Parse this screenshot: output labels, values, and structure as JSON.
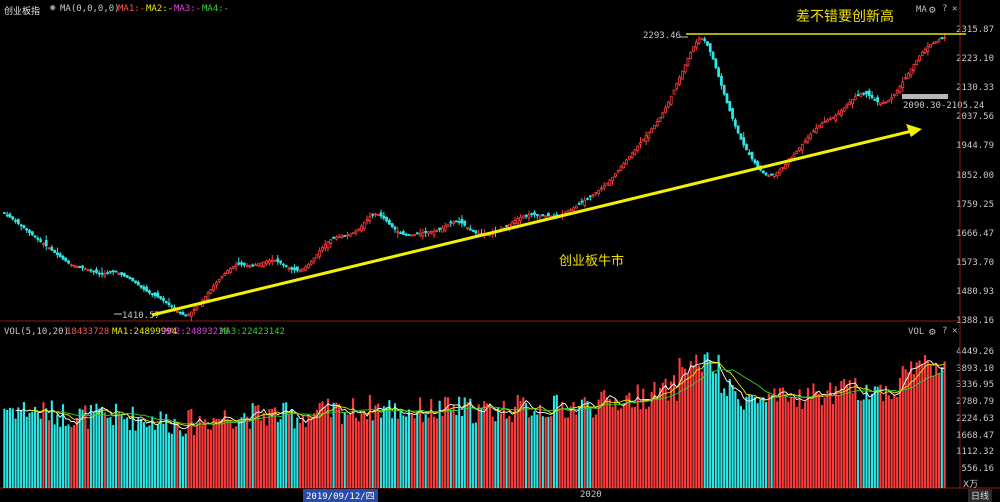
{
  "header": {
    "title": "创业板指",
    "ma_params": "MA(0,0,0,0)",
    "ma1": "MA1:-",
    "ma2": "MA2:-",
    "ma3": "MA3:-",
    "ma4": "MA4:-",
    "ma_tool": "MA"
  },
  "vol_header": {
    "label": "VOL(5,10,20)",
    "vol_value": "18433728",
    "ma1": "MA1:24899994",
    "ma2": "MA2:24893236",
    "ma3": "MA3:22423142",
    "tool": "VOL"
  },
  "annotations": {
    "headline": "差不错要创新高",
    "bull": "创业板牛市",
    "high_label": "2293.46",
    "low_label": "1410.57",
    "range_label": "2090.30-2105.24"
  },
  "xaxis": {
    "date_tag": "2019/09/12/四",
    "year": "2020"
  },
  "bottom": {
    "unit": "X万",
    "period": "日线"
  },
  "colors": {
    "up": "#ff3c3c",
    "down": "#2fe6e6",
    "ma_yellow": "#e8e800",
    "ma_white": "#ffffff",
    "ma_magenta": "#e040e0",
    "ma_green": "#30d030",
    "trend": "#f2f200"
  },
  "chart_data": [
    {
      "type": "candlestick",
      "title": "创业板指",
      "y_ticks": [
        "2315.87",
        "2223.10",
        "2130.33",
        "2037.56",
        "1944.79",
        "1852.00",
        "1759.25",
        "1666.47",
        "1573.70",
        "1480.93",
        "1388.16"
      ],
      "ylim": [
        1388.16,
        2315.87
      ],
      "high": 2293.46,
      "low": 1410.57,
      "x_ticks": [
        "2019/09/12/四",
        "2020"
      ],
      "close_series": [
        1736,
        1729,
        1722,
        1716,
        1709,
        1702,
        1695,
        1688,
        1681,
        1673,
        1666,
        1659,
        1652,
        1645,
        1638,
        1631,
        1624,
        1617,
        1610,
        1603,
        1596,
        1589,
        1582,
        1576,
        1571,
        1568,
        1565,
        1563,
        1561,
        1558,
        1555,
        1552,
        1549,
        1546,
        1543,
        1541,
        1542,
        1545,
        1548,
        1550,
        1547,
        1543,
        1539,
        1535,
        1531,
        1526,
        1520,
        1513,
        1506,
        1499,
        1492,
        1486,
        1481,
        1476,
        1472,
        1468,
        1463,
        1457,
        1450,
        1443,
        1436,
        1429,
        1422,
        1416,
        1412,
        1411,
        1414,
        1420,
        1428,
        1437,
        1447,
        1458,
        1469,
        1481,
        1492,
        1503,
        1514,
        1524,
        1534,
        1543,
        1552,
        1559,
        1565,
        1570,
        1572,
        1572,
        1570,
        1568,
        1567,
        1568,
        1571,
        1574,
        1577,
        1580,
        1583,
        1585,
        1586,
        1585,
        1581,
        1576,
        1570,
        1565,
        1560,
        1556,
        1554,
        1553,
        1554,
        1558,
        1564,
        1572,
        1581,
        1592,
        1603,
        1615,
        1626,
        1636,
        1644,
        1651,
        1656,
        1659,
        1661,
        1663,
        1664,
        1666,
        1669,
        1673,
        1678,
        1685,
        1694,
        1705,
        1715,
        1724,
        1730,
        1733,
        1731,
        1726,
        1719,
        1710,
        1700,
        1692,
        1684,
        1677,
        1671,
        1667,
        1665,
        1664,
        1665,
        1667,
        1669,
        1671,
        1673,
        1675,
        1676,
        1677,
        1678,
        1680,
        1683,
        1688,
        1694,
        1700,
        1705,
        1708,
        1709,
        1707,
        1703,
        1697,
        1690,
        1683,
        1677,
        1672,
        1669,
        1667,
        1667,
        1668,
        1670,
        1672,
        1675,
        1679,
        1684,
        1689,
        1694,
        1700,
        1706,
        1712,
        1718,
        1722,
        1726,
        1728,
        1730,
        1731,
        1731,
        1730,
        1729,
        1728,
        1727,
        1726,
        1726,
        1726,
        1727,
        1729,
        1732,
        1736,
        1741,
        1746,
        1752,
        1758,
        1764,
        1770,
        1776,
        1782,
        1788,
        1794,
        1801,
        1808,
        1815,
        1823,
        1831,
        1840,
        1850,
        1861,
        1872,
        1883,
        1894,
        1905,
        1916,
        1927,
        1938,
        1949,
        1960,
        1971,
        1982,
        1993,
        2004,
        2015,
        2027,
        2040,
        2055,
        2071,
        2089,
        2108,
        2128,
        2148,
        2168,
        2188,
        2208,
        2228,
        2248,
        2266,
        2281,
        2290,
        2293,
        2285,
        2270,
        2250,
        2226,
        2199,
        2171,
        2143,
        2115,
        2088,
        2062,
        2037,
        2013,
        1991,
        1971,
        1953,
        1937,
        1922,
        1908,
        1895,
        1883,
        1872,
        1863,
        1857,
        1855,
        1856,
        1860,
        1866,
        1873,
        1881,
        1890,
        1900,
        1910,
        1921,
        1932,
        1943,
        1954,
        1965,
        1976,
        1987,
        1997,
        2006,
        2014,
        2021,
        2027,
        2032,
        2036,
        2041,
        2047,
        2054,
        2062,
        2071,
        2080,
        2089,
        2098,
        2106,
        2112,
        2116,
        2117,
        2115,
        2110,
        2103,
        2096,
        2090,
        2087,
        2087,
        2090,
        2096,
        2104,
        2114,
        2126,
        2139,
        2153,
        2167,
        2181,
        2195,
        2209,
        2223,
        2236,
        2248,
        2258,
        2266,
        2273,
        2278,
        2283,
        2288,
        2292,
        2295
      ]
    },
    {
      "type": "bar",
      "title": "VOL(5,10,20)",
      "y_ticks": [
        "4449.26",
        "3893.10",
        "3336.95",
        "2780.79",
        "2224.63",
        "1668.47",
        "1112.32",
        "556.16",
        "X万"
      ],
      "ylim": [
        0,
        4820
      ],
      "unit": "X万"
    }
  ]
}
